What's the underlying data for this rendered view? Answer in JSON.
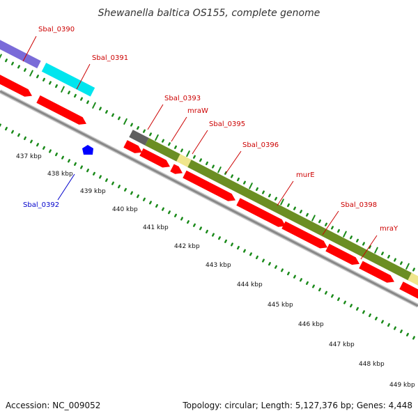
{
  "title": "Shewanella baltica OS155, complete genome",
  "accession": "Accession: NC_009052",
  "summary": "Topology: circular; Length: 5,127,376 bp; Genes: 4,448",
  "colors": {
    "forward_cds": "#ff0000",
    "reverse_cds": "#ff0000",
    "feature_purple": "#7a6bd8",
    "feature_cyan": "#00e5ee",
    "feature_gray": "#606060",
    "feature_olive": "#6b8e23",
    "feature_tan": "#f0e68c",
    "reverse_gene": "#0000ff",
    "backbone": "#888888",
    "ticks": "#1a8a1a",
    "label_forward": "#cc0000",
    "label_reverse": "#0000cc"
  },
  "gene_labels": [
    {
      "name": "Sbal_0390",
      "strand": "forward"
    },
    {
      "name": "Sbal_0391",
      "strand": "forward"
    },
    {
      "name": "Sbal_0393",
      "strand": "forward"
    },
    {
      "name": "mraW",
      "strand": "forward"
    },
    {
      "name": "Sbal_0395",
      "strand": "forward"
    },
    {
      "name": "Sbal_0396",
      "strand": "forward"
    },
    {
      "name": "murE",
      "strand": "forward"
    },
    {
      "name": "Sbal_0398",
      "strand": "forward"
    },
    {
      "name": "mraY",
      "strand": "forward"
    },
    {
      "name": "Sbal_0392",
      "strand": "reverse"
    }
  ],
  "scale_labels": [
    "437 kbp",
    "438 kbp",
    "439 kbp",
    "440 kbp",
    "441 kbp",
    "442 kbp",
    "443 kbp",
    "444 kbp",
    "445 kbp",
    "446 kbp",
    "447 kbp",
    "448 kbp",
    "449 kbp"
  ]
}
